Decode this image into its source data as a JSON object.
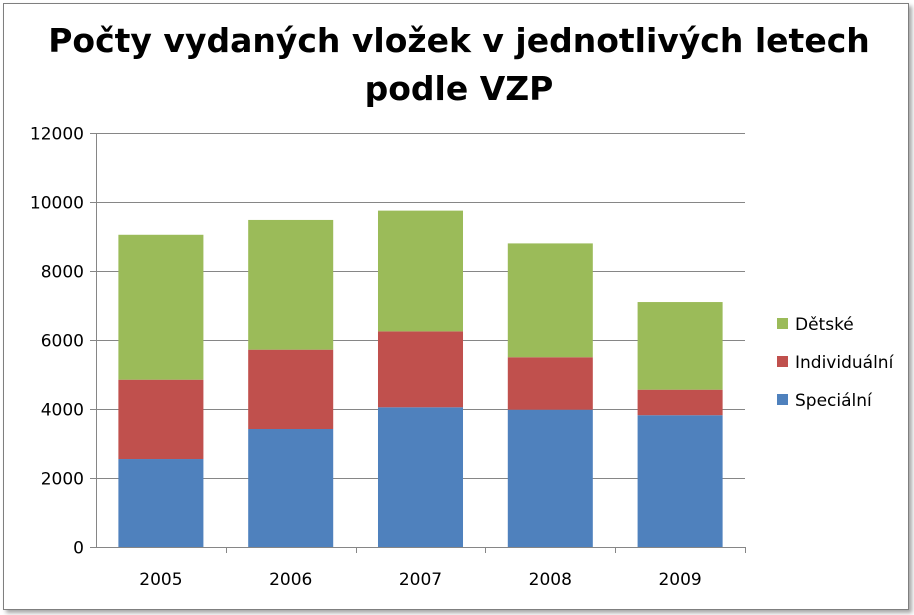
{
  "chart_data": {
    "type": "bar",
    "stacked": true,
    "title": "Počty vydaných vložek v jednotlivých letech podle VZP",
    "title_lines": [
      "Počty vydaných vložek v jednotlivých letech",
      "podle VZP"
    ],
    "categories": [
      "2005",
      "2006",
      "2007",
      "2008",
      "2009"
    ],
    "series": [
      {
        "name": "Speciální",
        "color": "#4f81bd",
        "values": [
          2550,
          3420,
          4050,
          3980,
          3820
        ]
      },
      {
        "name": "Individuální",
        "color": "#c0504d",
        "values": [
          2300,
          2300,
          2200,
          1520,
          740
        ]
      },
      {
        "name": "Dětské",
        "color": "#9bbb59",
        "values": [
          4200,
          3760,
          3500,
          3300,
          2540
        ]
      }
    ],
    "ylim": [
      0,
      12000
    ],
    "yticks": [
      "0",
      "2000",
      "4000",
      "6000",
      "8000",
      "10000",
      "12000"
    ],
    "grid": true,
    "legend_position": "right"
  }
}
